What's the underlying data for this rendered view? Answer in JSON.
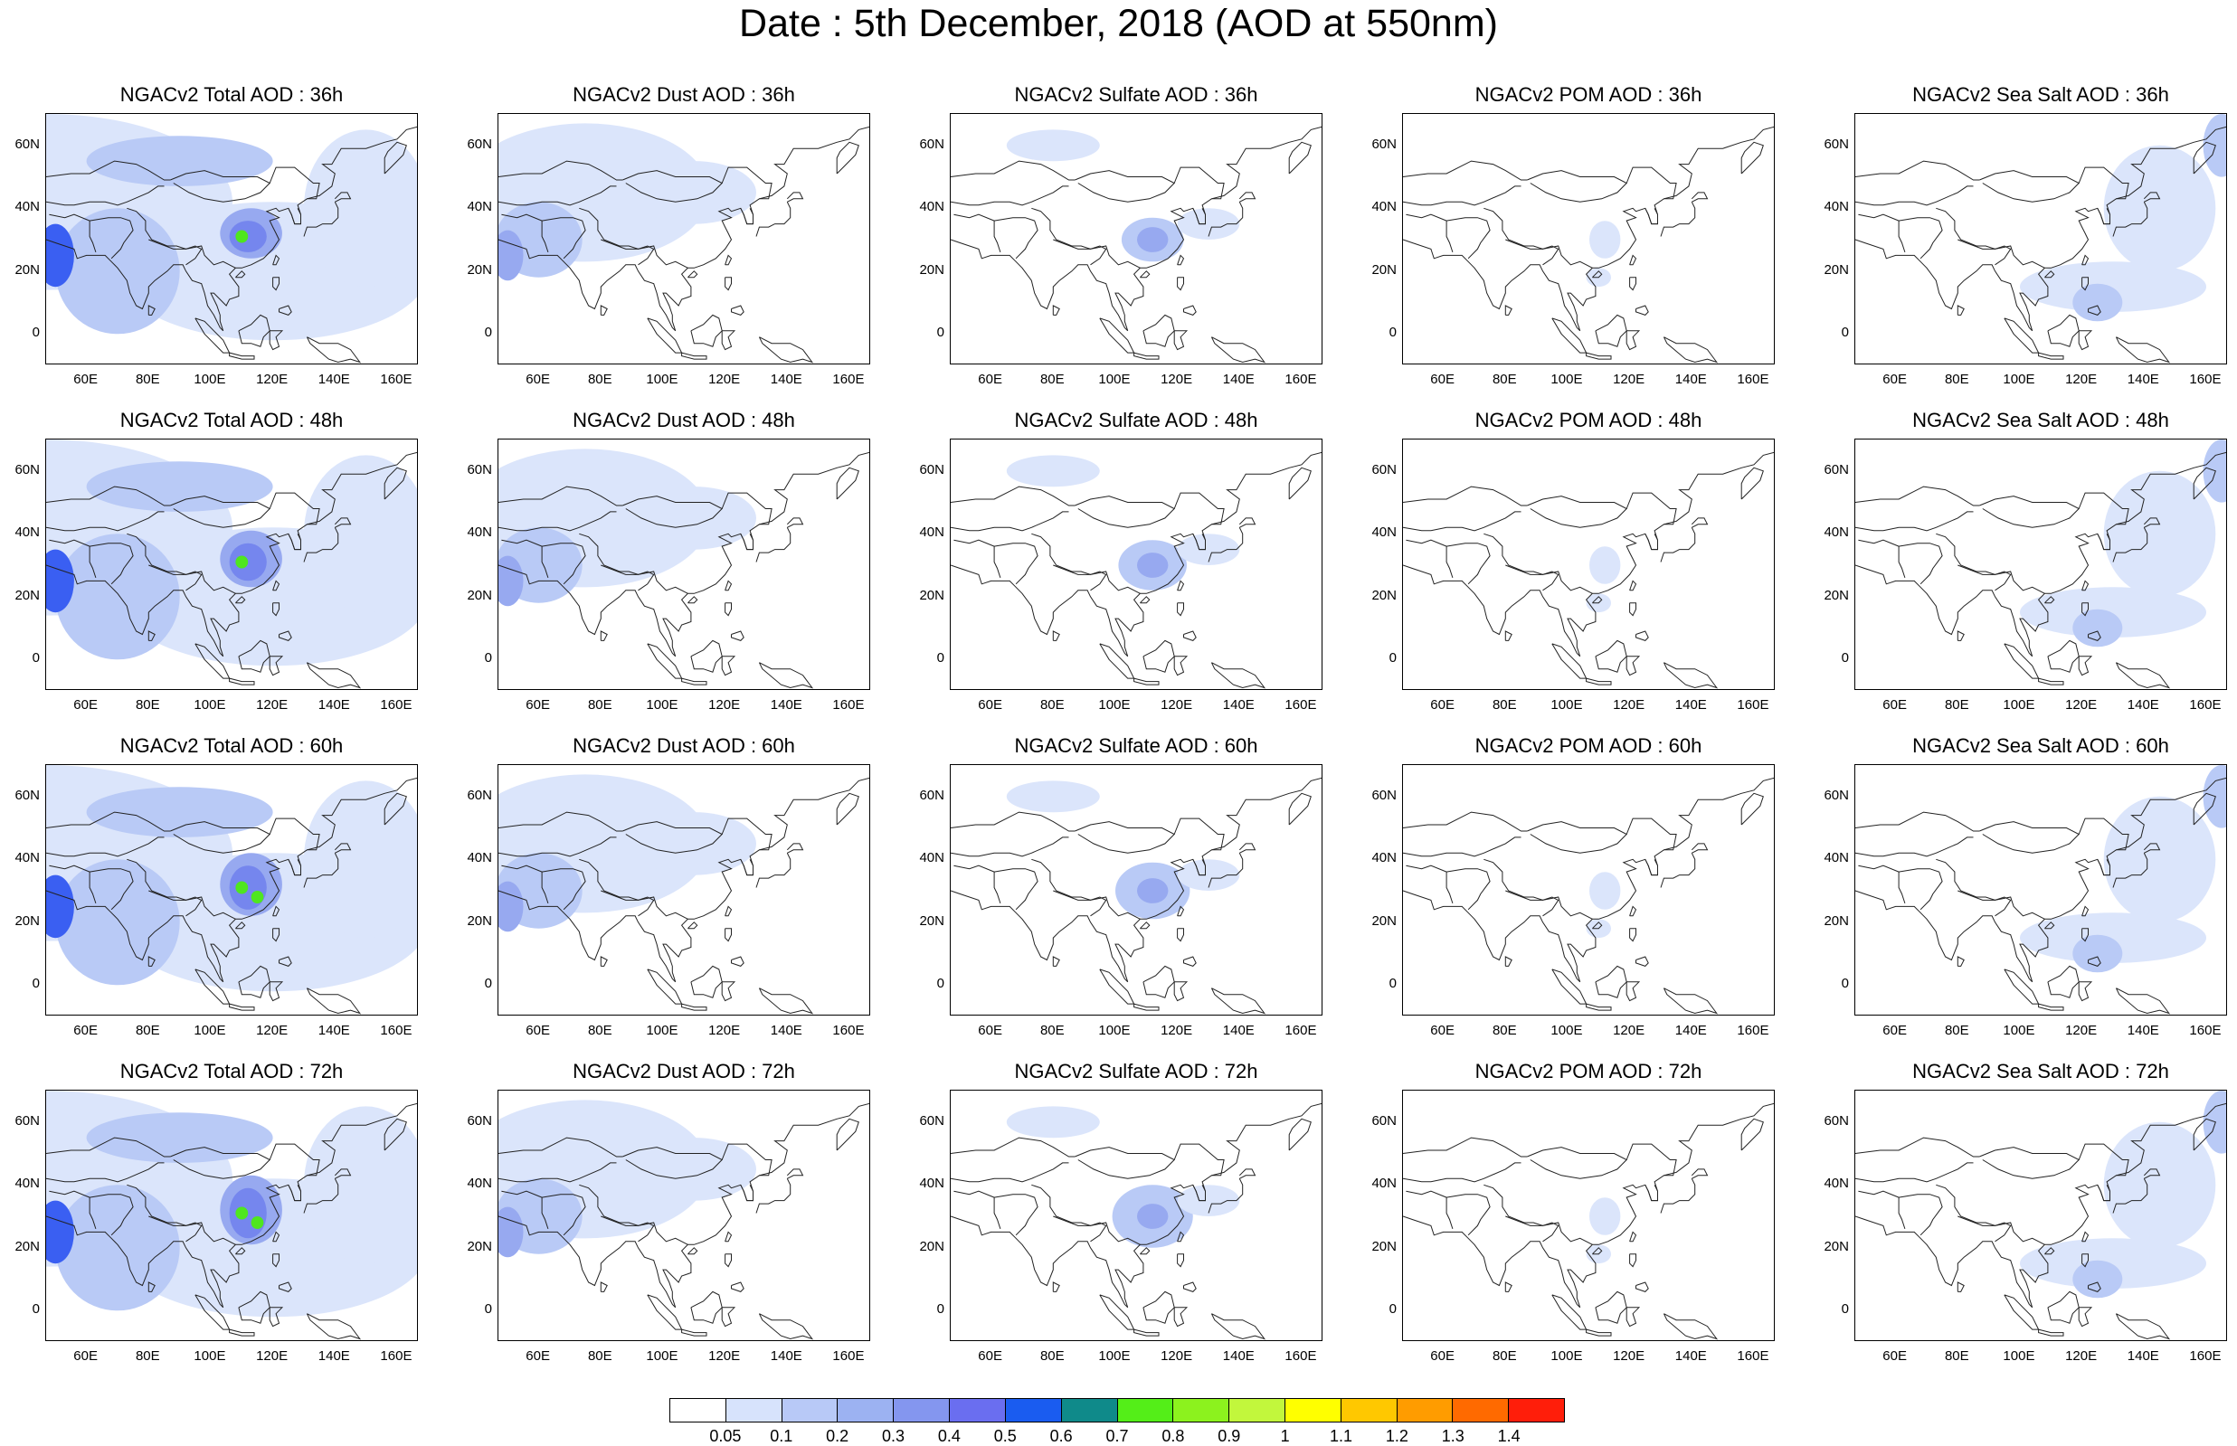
{
  "title": "Date : 5th December, 2018 (AOD at 550nm)",
  "panels": [
    [
      "NGACv2 Total AOD : 36h",
      "NGACv2 Dust AOD : 36h",
      "NGACv2 Sulfate AOD : 36h",
      "NGACv2 POM AOD : 36h",
      "NGACv2 Sea Salt AOD : 36h"
    ],
    [
      "NGACv2 Total AOD : 48h",
      "NGACv2 Dust AOD : 48h",
      "NGACv2 Sulfate AOD : 48h",
      "NGACv2 POM AOD : 48h",
      "NGACv2 Sea Salt AOD : 48h"
    ],
    [
      "NGACv2 Total AOD : 60h",
      "NGACv2 Dust AOD : 60h",
      "NGACv2 Sulfate AOD : 60h",
      "NGACv2 POM AOD : 60h",
      "NGACv2 Sea Salt AOD : 60h"
    ],
    [
      "NGACv2 Total AOD : 72h",
      "NGACv2 Dust AOD : 72h",
      "NGACv2 Sulfate AOD : 72h",
      "NGACv2 POM AOD : 72h",
      "NGACv2 Sea Salt  AOD : 72h"
    ]
  ],
  "axes": {
    "lat_ticks": [
      "60N",
      "40N",
      "20N",
      "0"
    ],
    "lon_ticks": [
      "60E",
      "80E",
      "100E",
      "120E",
      "140E",
      "160E"
    ],
    "lon_range": [
      47,
      167
    ],
    "lat_range": [
      -10,
      70
    ]
  },
  "colorbar": {
    "labels": [
      "0.05",
      "0.1",
      "0.2",
      "0.3",
      "0.4",
      "0.5",
      "0.6",
      "0.7",
      "0.8",
      "0.9",
      "1",
      "1.1",
      "1.2",
      "1.3",
      "1.4"
    ],
    "colors": [
      "#ffffff",
      "#d7e3fc",
      "#b8c9f7",
      "#9cb2f2",
      "#8496ef",
      "#6a6ef0",
      "#1a5cf0",
      "#0f8a8a",
      "#54ee18",
      "#8cf21e",
      "#c2f73c",
      "#ffff00",
      "#ffc800",
      "#ff9c00",
      "#ff6a00",
      "#ff1e0a"
    ]
  },
  "field_colors": {
    "light": "#dbe5fb",
    "mid": "#b9caf6",
    "strong": "#97a9f0",
    "deep": "#7586ee",
    "blue": "#3a5ff2",
    "green": "#4fe61f"
  }
}
